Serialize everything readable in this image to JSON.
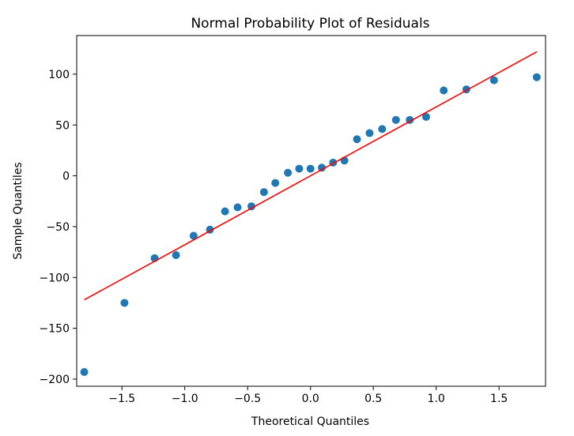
{
  "chart_data": {
    "type": "scatter",
    "title": "Normal Probability Plot of Residuals",
    "xlabel": "Theoretical Quantiles",
    "ylabel": "Sample Quantiles",
    "xlim": [
      -1.86,
      1.87
    ],
    "ylim": [
      -207,
      138
    ],
    "grid": false,
    "xticks": [
      -1.5,
      -1.0,
      -0.5,
      0.0,
      0.5,
      1.0,
      1.5
    ],
    "xtick_labels": [
      "−1.5",
      "−1.0",
      "−0.5",
      "0.0",
      "0.5",
      "1.0",
      "1.5"
    ],
    "yticks": [
      -200,
      -150,
      -100,
      -50,
      0,
      50,
      100
    ],
    "ytick_labels": [
      "−200",
      "−150",
      "−100",
      "−50",
      "0",
      "50",
      "100"
    ],
    "series": [
      {
        "name": "residuals",
        "color": "#1f77b4",
        "x": [
          -1.8,
          -1.48,
          -1.24,
          -1.07,
          -0.93,
          -0.8,
          -0.68,
          -0.58,
          -0.47,
          -0.37,
          -0.28,
          -0.18,
          -0.09,
          0.0,
          0.09,
          0.18,
          0.27,
          0.37,
          0.47,
          0.57,
          0.68,
          0.79,
          0.92,
          1.06,
          1.24,
          1.46,
          1.8
        ],
        "y": [
          -193,
          -125,
          -81,
          -78,
          -59,
          -53,
          -35,
          -31,
          -30,
          -16,
          -7,
          3,
          7,
          7,
          8,
          13,
          15,
          36,
          42,
          46,
          55,
          55,
          58,
          84,
          85,
          94,
          97
        ]
      }
    ],
    "reference_line": {
      "color": "#ff0000",
      "x": [
        -1.8,
        1.8
      ],
      "y": [
        -122,
        122
      ]
    }
  }
}
